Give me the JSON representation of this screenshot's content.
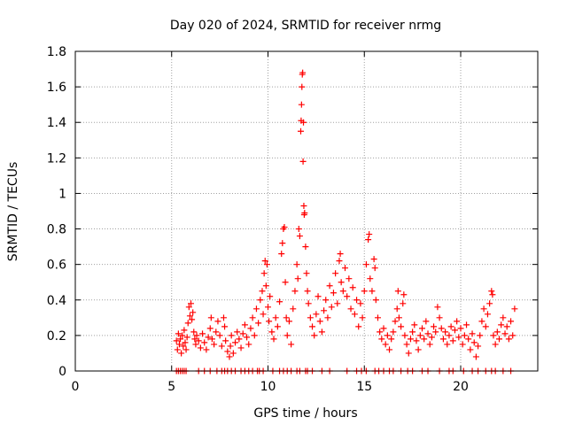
{
  "chart_data": {
    "type": "scatter",
    "title": "Day 020 of 2024, SRMTID for receiver nrmg",
    "xlabel": "GPS time / hours",
    "ylabel": "SRMTID / TECUs",
    "xlim": [
      0,
      24
    ],
    "ylim": [
      0,
      1.8
    ],
    "xticks": [
      0,
      5,
      10,
      15,
      20
    ],
    "xtick_labels": [
      "0",
      "5",
      "10",
      "15",
      "20"
    ],
    "yticks": [
      0,
      0.2,
      0.4,
      0.6,
      0.8,
      1.0,
      1.2,
      1.4,
      1.6,
      1.8
    ],
    "ytick_labels": [
      "0",
      "0.2",
      "0.4",
      "0.6",
      "0.8",
      "1",
      "1.2",
      "1.4",
      "1.6",
      "1.8"
    ],
    "grid": true,
    "marker": "+",
    "marker_color": "#ff0000",
    "series": [
      {
        "name": "SRMTID",
        "points": [
          [
            5.25,
            0.17
          ],
          [
            5.3,
            0.12
          ],
          [
            5.35,
            0.21
          ],
          [
            5.4,
            0.15
          ],
          [
            5.45,
            0.18
          ],
          [
            5.5,
            0.1
          ],
          [
            5.55,
            0.2
          ],
          [
            5.6,
            0.14
          ],
          [
            5.65,
            0.23
          ],
          [
            5.7,
            0.16
          ],
          [
            5.75,
            0.12
          ],
          [
            5.8,
            0.19
          ],
          [
            5.85,
            0.27
          ],
          [
            5.9,
            0.36
          ],
          [
            5.95,
            0.31
          ],
          [
            6.0,
            0.38
          ],
          [
            6.05,
            0.29
          ],
          [
            6.1,
            0.33
          ],
          [
            6.15,
            0.22
          ],
          [
            6.2,
            0.18
          ],
          [
            6.25,
            0.15
          ],
          [
            6.3,
            0.2
          ],
          [
            6.4,
            0.17
          ],
          [
            6.5,
            0.13
          ],
          [
            6.6,
            0.21
          ],
          [
            6.7,
            0.16
          ],
          [
            6.8,
            0.12
          ],
          [
            6.9,
            0.19
          ],
          [
            7.0,
            0.24
          ],
          [
            7.05,
            0.3
          ],
          [
            7.1,
            0.18
          ],
          [
            7.2,
            0.15
          ],
          [
            7.3,
            0.22
          ],
          [
            7.4,
            0.28
          ],
          [
            7.5,
            0.2
          ],
          [
            7.6,
            0.14
          ],
          [
            7.7,
            0.3
          ],
          [
            7.75,
            0.25
          ],
          [
            7.8,
            0.17
          ],
          [
            7.9,
            0.11
          ],
          [
            8.0,
            0.08
          ],
          [
            8.05,
            0.14
          ],
          [
            8.1,
            0.2
          ],
          [
            8.2,
            0.1
          ],
          [
            8.3,
            0.16
          ],
          [
            8.4,
            0.22
          ],
          [
            8.5,
            0.18
          ],
          [
            8.6,
            0.13
          ],
          [
            8.7,
            0.21
          ],
          [
            8.8,
            0.26
          ],
          [
            8.9,
            0.19
          ],
          [
            9.0,
            0.15
          ],
          [
            9.1,
            0.24
          ],
          [
            9.2,
            0.3
          ],
          [
            9.3,
            0.2
          ],
          [
            9.4,
            0.35
          ],
          [
            9.5,
            0.27
          ],
          [
            9.6,
            0.4
          ],
          [
            9.7,
            0.45
          ],
          [
            9.75,
            0.32
          ],
          [
            9.8,
            0.55
          ],
          [
            9.85,
            0.62
          ],
          [
            9.9,
            0.48
          ],
          [
            9.95,
            0.6
          ],
          [
            10.0,
            0.36
          ],
          [
            10.05,
            0.28
          ],
          [
            10.1,
            0.42
          ],
          [
            10.2,
            0.22
          ],
          [
            10.3,
            0.18
          ],
          [
            10.4,
            0.3
          ],
          [
            10.5,
            0.25
          ],
          [
            10.6,
            0.39
          ],
          [
            10.7,
            0.66
          ],
          [
            10.75,
            0.72
          ],
          [
            10.8,
            0.8
          ],
          [
            10.85,
            0.81
          ],
          [
            10.9,
            0.5
          ],
          [
            10.95,
            0.3
          ],
          [
            11.0,
            0.2
          ],
          [
            11.1,
            0.28
          ],
          [
            11.2,
            0.15
          ],
          [
            11.3,
            0.35
          ],
          [
            11.4,
            0.45
          ],
          [
            11.5,
            0.6
          ],
          [
            11.55,
            0.52
          ],
          [
            11.6,
            0.8
          ],
          [
            11.65,
            0.76
          ],
          [
            11.7,
            1.35
          ],
          [
            11.72,
            1.41
          ],
          [
            11.74,
            1.5
          ],
          [
            11.76,
            1.6
          ],
          [
            11.78,
            1.67
          ],
          [
            11.8,
            1.68
          ],
          [
            11.82,
            1.18
          ],
          [
            11.84,
            1.4
          ],
          [
            11.86,
            0.93
          ],
          [
            11.88,
            0.88
          ],
          [
            11.9,
            0.89
          ],
          [
            11.95,
            0.7
          ],
          [
            12.0,
            0.55
          ],
          [
            12.05,
            0.45
          ],
          [
            12.1,
            0.38
          ],
          [
            12.2,
            0.3
          ],
          [
            12.3,
            0.25
          ],
          [
            12.4,
            0.2
          ],
          [
            12.5,
            0.32
          ],
          [
            12.6,
            0.42
          ],
          [
            12.7,
            0.28
          ],
          [
            12.8,
            0.22
          ],
          [
            12.9,
            0.34
          ],
          [
            13.0,
            0.4
          ],
          [
            13.1,
            0.3
          ],
          [
            13.2,
            0.48
          ],
          [
            13.3,
            0.36
          ],
          [
            13.4,
            0.44
          ],
          [
            13.5,
            0.55
          ],
          [
            13.6,
            0.38
          ],
          [
            13.7,
            0.62
          ],
          [
            13.75,
            0.66
          ],
          [
            13.8,
            0.5
          ],
          [
            13.9,
            0.45
          ],
          [
            14.0,
            0.58
          ],
          [
            14.1,
            0.42
          ],
          [
            14.2,
            0.52
          ],
          [
            14.3,
            0.35
          ],
          [
            14.4,
            0.47
          ],
          [
            14.5,
            0.32
          ],
          [
            14.6,
            0.4
          ],
          [
            14.7,
            0.25
          ],
          [
            14.8,
            0.38
          ],
          [
            14.9,
            0.3
          ],
          [
            15.0,
            0.45
          ],
          [
            15.1,
            0.6
          ],
          [
            15.2,
            0.74
          ],
          [
            15.25,
            0.77
          ],
          [
            15.3,
            0.52
          ],
          [
            15.4,
            0.45
          ],
          [
            15.5,
            0.63
          ],
          [
            15.55,
            0.58
          ],
          [
            15.6,
            0.4
          ],
          [
            15.7,
            0.3
          ],
          [
            15.8,
            0.22
          ],
          [
            15.9,
            0.18
          ],
          [
            16.0,
            0.24
          ],
          [
            16.1,
            0.15
          ],
          [
            16.2,
            0.2
          ],
          [
            16.3,
            0.12
          ],
          [
            16.4,
            0.18
          ],
          [
            16.5,
            0.22
          ],
          [
            16.6,
            0.28
          ],
          [
            16.7,
            0.35
          ],
          [
            16.75,
            0.45
          ],
          [
            16.8,
            0.3
          ],
          [
            16.9,
            0.25
          ],
          [
            17.0,
            0.38
          ],
          [
            17.05,
            0.43
          ],
          [
            17.1,
            0.2
          ],
          [
            17.2,
            0.15
          ],
          [
            17.3,
            0.1
          ],
          [
            17.4,
            0.18
          ],
          [
            17.5,
            0.22
          ],
          [
            17.6,
            0.26
          ],
          [
            17.7,
            0.17
          ],
          [
            17.8,
            0.12
          ],
          [
            17.9,
            0.2
          ],
          [
            18.0,
            0.24
          ],
          [
            18.1,
            0.18
          ],
          [
            18.2,
            0.28
          ],
          [
            18.3,
            0.21
          ],
          [
            18.4,
            0.15
          ],
          [
            18.5,
            0.19
          ],
          [
            18.6,
            0.25
          ],
          [
            18.7,
            0.22
          ],
          [
            18.8,
            0.36
          ],
          [
            18.9,
            0.3
          ],
          [
            19.0,
            0.24
          ],
          [
            19.1,
            0.18
          ],
          [
            19.2,
            0.22
          ],
          [
            19.3,
            0.15
          ],
          [
            19.4,
            0.2
          ],
          [
            19.5,
            0.25
          ],
          [
            19.6,
            0.17
          ],
          [
            19.7,
            0.23
          ],
          [
            19.8,
            0.28
          ],
          [
            19.9,
            0.19
          ],
          [
            20.0,
            0.24
          ],
          [
            20.1,
            0.15
          ],
          [
            20.2,
            0.2
          ],
          [
            20.3,
            0.26
          ],
          [
            20.4,
            0.18
          ],
          [
            20.5,
            0.12
          ],
          [
            20.6,
            0.21
          ],
          [
            20.7,
            0.16
          ],
          [
            20.8,
            0.08
          ],
          [
            20.9,
            0.14
          ],
          [
            21.0,
            0.2
          ],
          [
            21.1,
            0.28
          ],
          [
            21.2,
            0.35
          ],
          [
            21.3,
            0.25
          ],
          [
            21.4,
            0.32
          ],
          [
            21.5,
            0.38
          ],
          [
            21.6,
            0.45
          ],
          [
            21.65,
            0.43
          ],
          [
            21.7,
            0.2
          ],
          [
            21.8,
            0.15
          ],
          [
            21.9,
            0.22
          ],
          [
            22.0,
            0.18
          ],
          [
            22.1,
            0.26
          ],
          [
            22.2,
            0.3
          ],
          [
            22.3,
            0.21
          ],
          [
            22.4,
            0.25
          ],
          [
            22.5,
            0.18
          ],
          [
            22.6,
            0.28
          ],
          [
            22.7,
            0.2
          ],
          [
            22.8,
            0.35
          ]
        ],
        "zero_times": [
          5.25,
          5.35,
          5.45,
          5.55,
          5.65,
          5.75,
          6.4,
          6.7,
          7.0,
          7.35,
          7.6,
          7.75,
          7.9,
          8.1,
          8.3,
          8.6,
          8.8,
          9.0,
          9.2,
          9.45,
          9.55,
          9.75,
          10.25,
          10.6,
          10.8,
          11.0,
          11.2,
          11.5,
          11.65,
          11.95,
          12.05,
          12.3,
          12.8,
          13.2,
          14.1,
          14.6,
          14.85,
          15.1,
          15.55,
          15.75,
          16.0,
          16.3,
          16.5,
          16.9,
          17.25,
          17.5,
          18.0,
          18.3,
          18.9,
          19.4,
          19.6,
          20.15,
          20.6,
          20.9,
          21.3,
          21.6,
          21.8,
          22.2,
          22.6
        ]
      }
    ]
  }
}
